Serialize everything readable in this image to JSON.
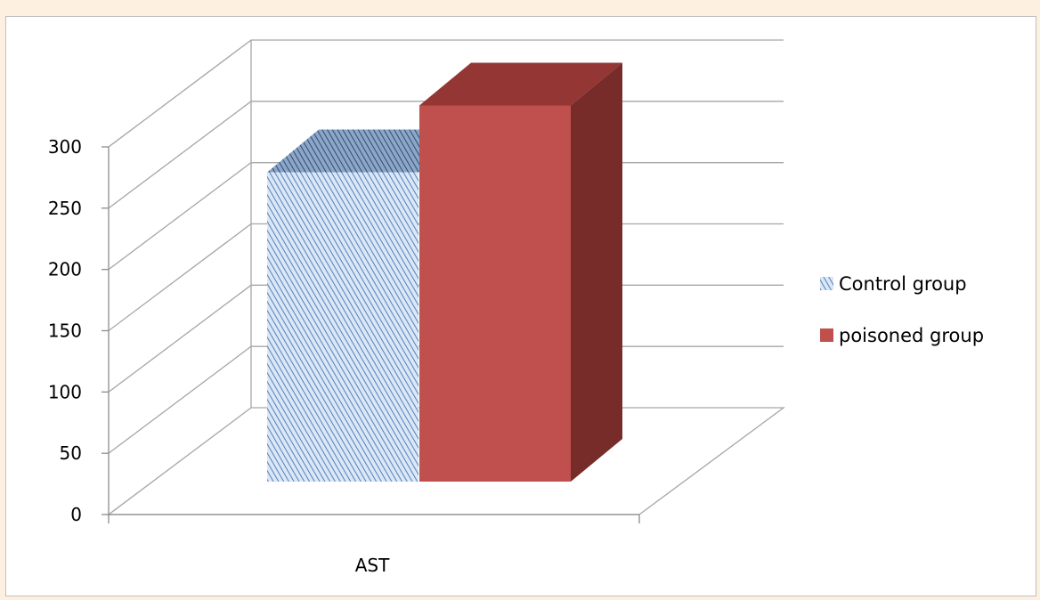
{
  "chart_data": {
    "type": "bar",
    "title": "",
    "xlabel": "",
    "ylabel": "",
    "categories": [
      "AST"
    ],
    "series": [
      {
        "name": "Control group",
        "values": [
          255
        ],
        "color": "#9ab7e2",
        "pattern": "diagonal-hatch"
      },
      {
        "name": "poisoned group",
        "values": [
          310
        ],
        "color": "#c0504d",
        "pattern": "solid"
      }
    ],
    "ylim": [
      0,
      300
    ],
    "yticks": [
      "0",
      "50",
      "100",
      "150",
      "200",
      "250",
      "300"
    ],
    "grid": true,
    "three_d": true,
    "legend_position": "right"
  }
}
